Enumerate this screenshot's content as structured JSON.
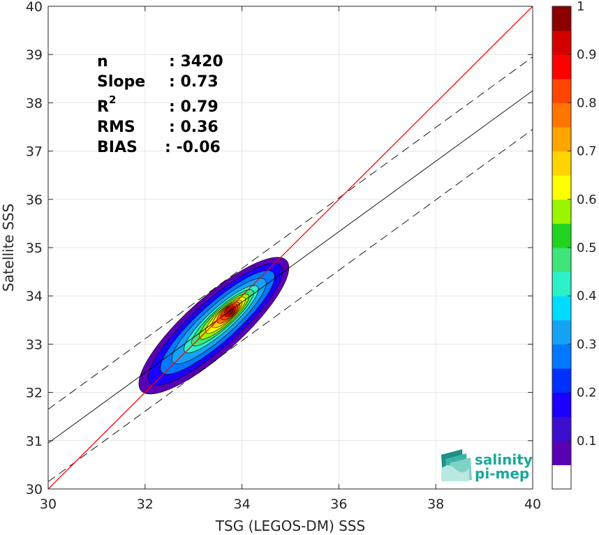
{
  "chart_data": {
    "type": "contour",
    "xlabel": "TSG (LEGOS-DM) SSS",
    "ylabel": "Satellite SSS",
    "xlim": [
      30,
      40
    ],
    "ylim": [
      30,
      40
    ],
    "xticks": [
      30,
      32,
      34,
      36,
      38,
      40
    ],
    "yticks": [
      30,
      31,
      32,
      33,
      34,
      35,
      36,
      37,
      38,
      39,
      40
    ],
    "grid": true,
    "stats": [
      {
        "label": "n",
        "value": ": 3420"
      },
      {
        "label": "Slope",
        "value": ": 0.73"
      },
      {
        "label": "R",
        "sup": "2",
        "value": ": 0.79"
      },
      {
        "label": "RMS",
        "value": ": 0.36"
      },
      {
        "label": "BIAS",
        "value": ": -0.06"
      }
    ],
    "lines": {
      "identity": {
        "x": [
          30,
          40
        ],
        "y": [
          30,
          40
        ],
        "color": "#ff0000"
      },
      "regression": {
        "x": [
          30,
          40
        ],
        "y": [
          30.95,
          38.25
        ],
        "color": "#000000"
      },
      "regression_upper": {
        "x": [
          30,
          40
        ],
        "y": [
          31.65,
          38.95
        ],
        "color": "#000000",
        "dash": true
      },
      "regression_lower": {
        "x": [
          30,
          40
        ],
        "y": [
          30.15,
          37.45
        ],
        "color": "#000000",
        "dash": true
      }
    },
    "density": {
      "center": [
        33.75,
        33.68
      ],
      "ridge_start": [
        32.3,
        32.4
      ],
      "ridge_end": [
        34.8,
        34.65
      ],
      "outer_extent": {
        "x": [
          32.05,
          35.05
        ],
        "y": [
          31.9,
          35.05
        ]
      }
    },
    "colorbar": {
      "ticks": [
        0.1,
        0.2,
        0.3,
        0.4,
        0.5,
        0.6,
        0.7,
        0.8,
        0.9,
        1
      ],
      "range": [
        0,
        1
      ],
      "colors": [
        "#ffffff",
        "#5a00b4",
        "#3c0fcf",
        "#1b00ff",
        "#0030ff",
        "#0078ff",
        "#17a3f5",
        "#00dcff",
        "#2bf0c8",
        "#3fe47a",
        "#21d421",
        "#9af500",
        "#ffff00",
        "#ffd400",
        "#ffa500",
        "#ff7500",
        "#ff4500",
        "#ff0000",
        "#d40000",
        "#8c0000"
      ]
    }
  },
  "logo": {
    "line1": "salinity",
    "line2": "pi-mep"
  }
}
